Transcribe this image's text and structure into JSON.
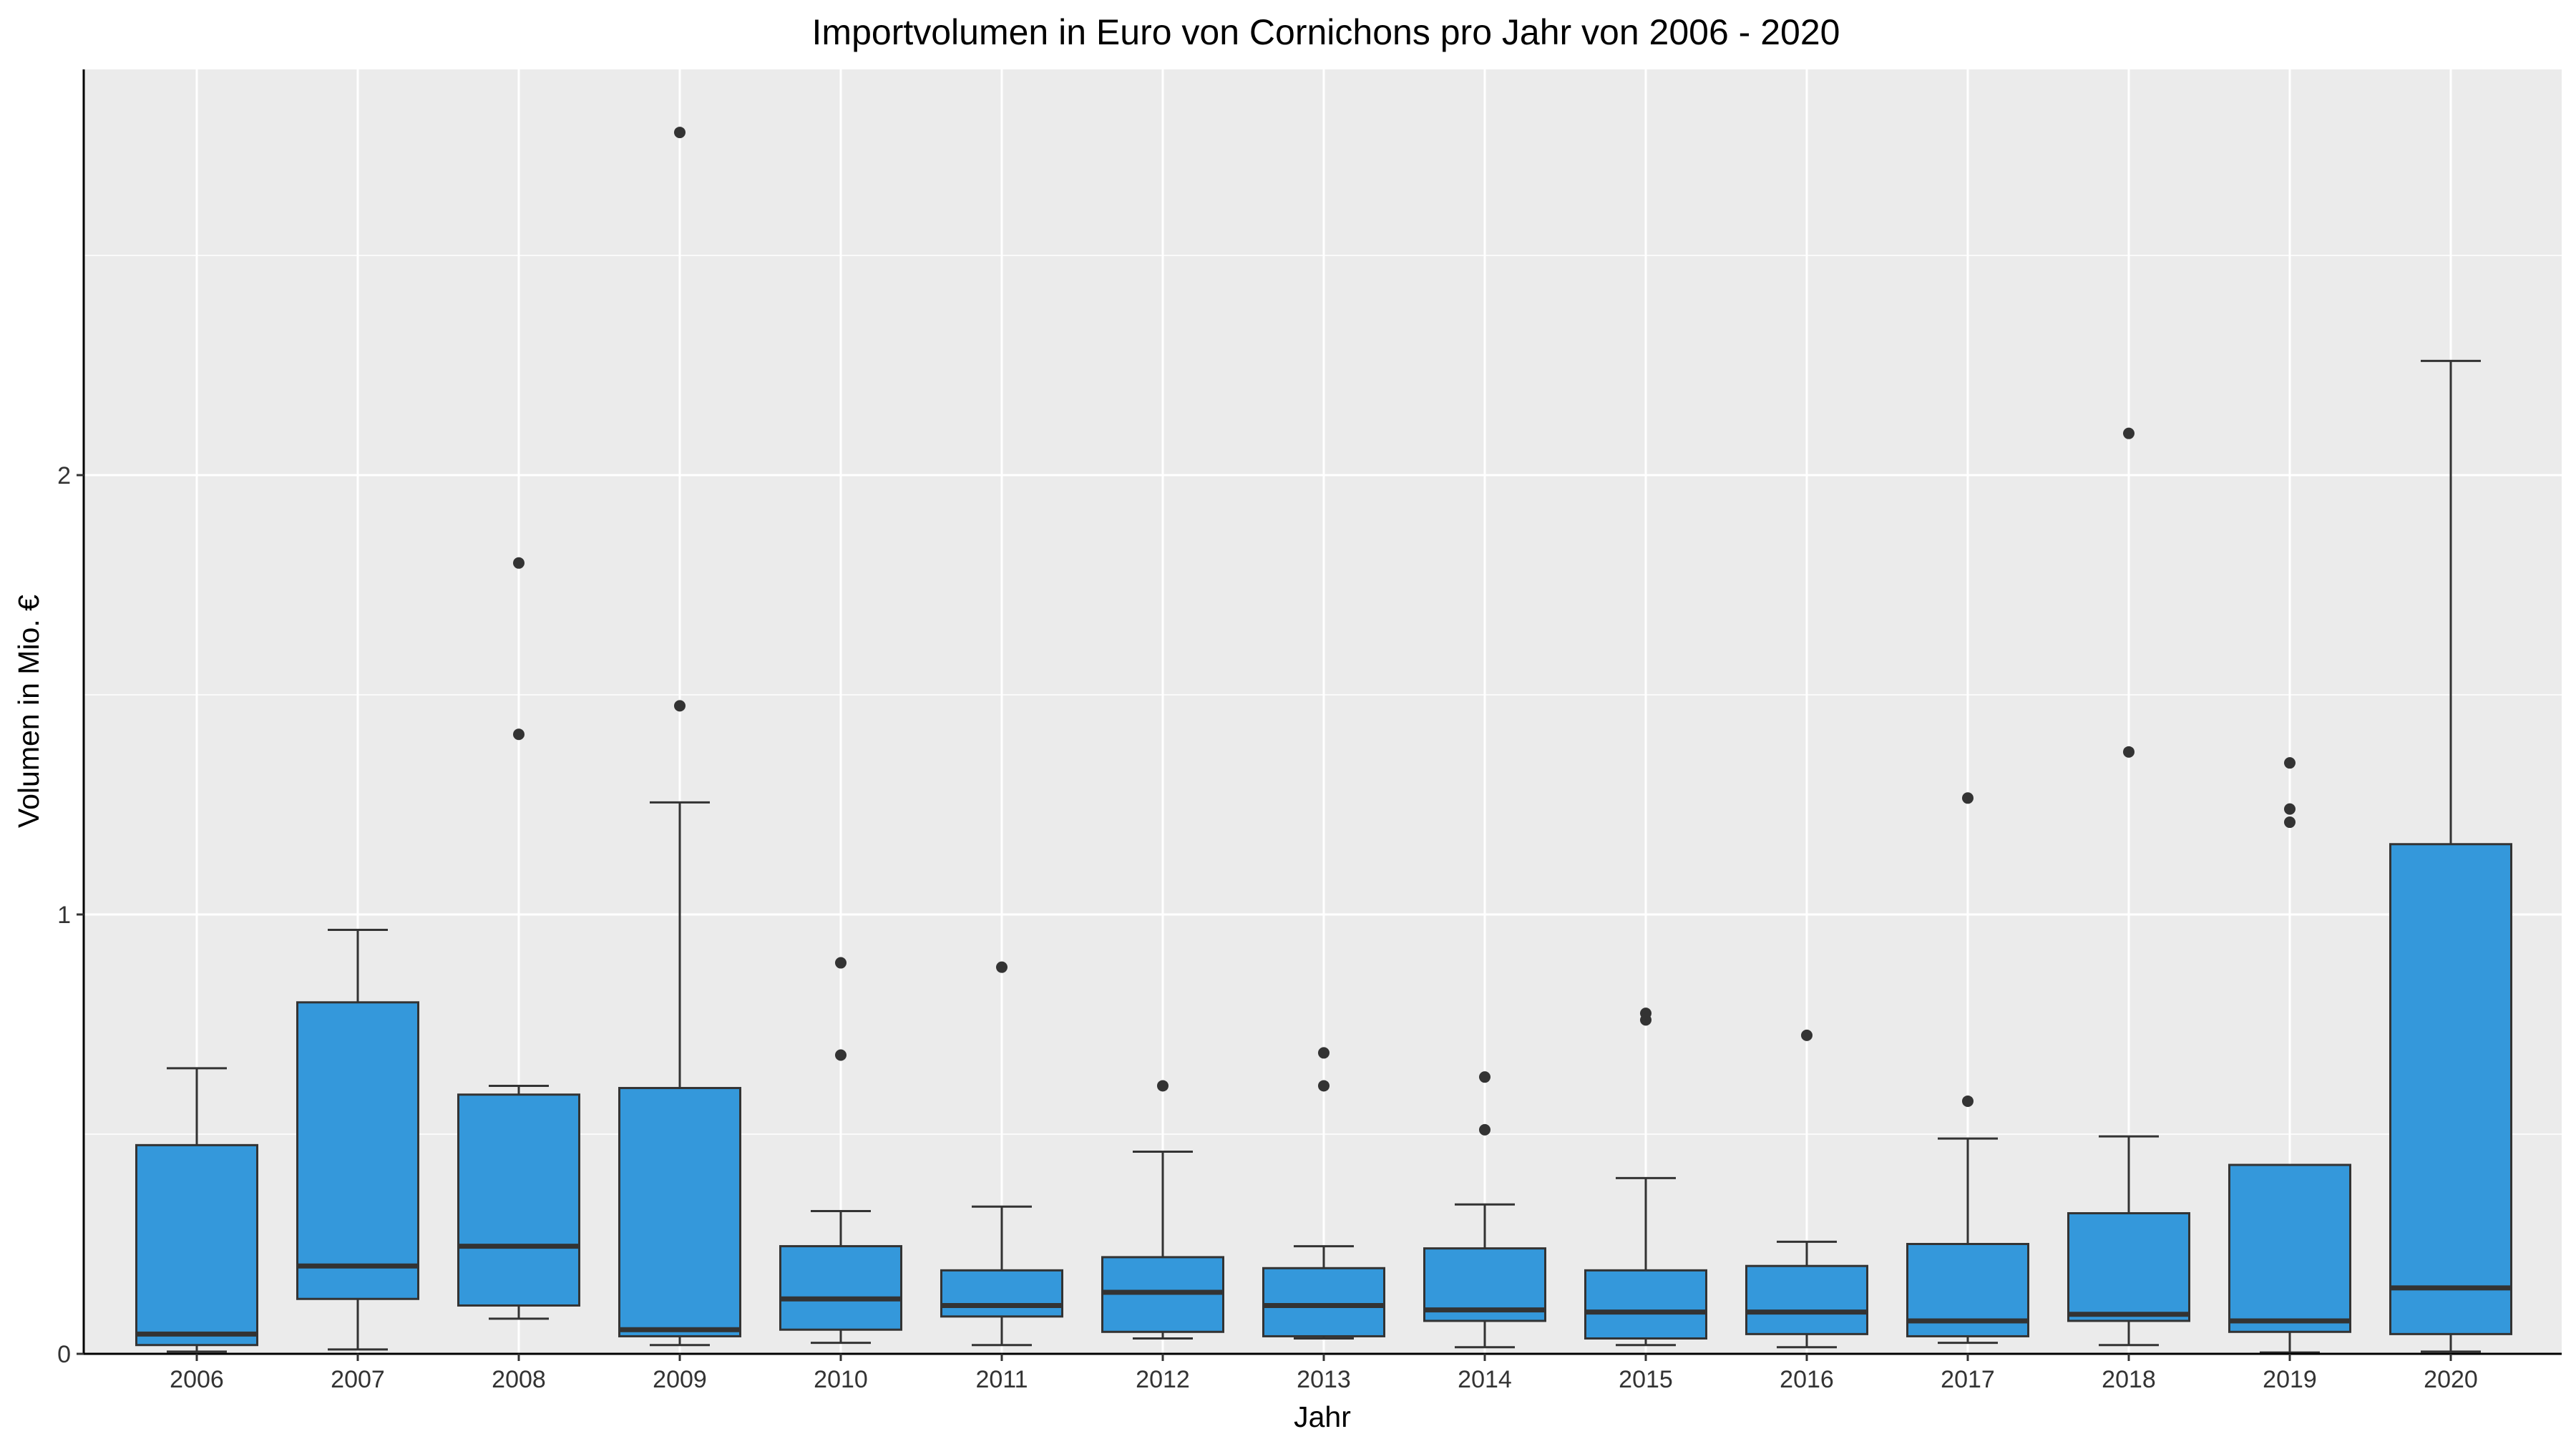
{
  "chart_data": {
    "type": "boxplot",
    "title": "Importvolumen in Euro von Cornichons pro Jahr von 2006 - 2020",
    "xlabel": "Jahr",
    "ylabel": "Volumen in Mio. €",
    "ylim": [
      0,
      2.9
    ],
    "y_ticks": [
      0,
      1,
      2
    ],
    "y_tick_labels": [
      "0",
      "1",
      "2"
    ],
    "grid": true,
    "legend": "none",
    "colors": {
      "box_fill": "#3498DB",
      "panel": "#EBEBEB",
      "grid": "#FFFFFF",
      "line": "#333333"
    },
    "categories": [
      "2006",
      "2007",
      "2008",
      "2009",
      "2010",
      "2011",
      "2012",
      "2013",
      "2014",
      "2015",
      "2016",
      "2017",
      "2018",
      "2019",
      "2020"
    ],
    "boxes": [
      {
        "x": "2006",
        "whisker_low": 0.005,
        "q1": 0.02,
        "median": 0.045,
        "q3": 0.475,
        "whisker_high": 0.65,
        "outliers": []
      },
      {
        "x": "2007",
        "whisker_low": 0.01,
        "q1": 0.125,
        "median": 0.2,
        "q3": 0.8,
        "whisker_high": 0.965,
        "outliers": []
      },
      {
        "x": "2008",
        "whisker_low": 0.08,
        "q1": 0.11,
        "median": 0.245,
        "q3": 0.59,
        "whisker_high": 0.61,
        "outliers": [
          1.41,
          1.8
        ]
      },
      {
        "x": "2009",
        "whisker_low": 0.02,
        "q1": 0.04,
        "median": 0.055,
        "q3": 0.605,
        "whisker_high": 1.255,
        "outliers": [
          1.475,
          2.78
        ]
      },
      {
        "x": "2010",
        "whisker_low": 0.025,
        "q1": 0.055,
        "median": 0.125,
        "q3": 0.245,
        "whisker_high": 0.325,
        "outliers": [
          0.68,
          0.89
        ]
      },
      {
        "x": "2011",
        "whisker_low": 0.02,
        "q1": 0.085,
        "median": 0.11,
        "q3": 0.19,
        "whisker_high": 0.335,
        "outliers": [
          0.88
        ]
      },
      {
        "x": "2012",
        "whisker_low": 0.035,
        "q1": 0.05,
        "median": 0.14,
        "q3": 0.22,
        "whisker_high": 0.46,
        "outliers": [
          0.61
        ]
      },
      {
        "x": "2013",
        "whisker_low": 0.035,
        "q1": 0.04,
        "median": 0.11,
        "q3": 0.195,
        "whisker_high": 0.245,
        "outliers": [
          0.61,
          0.685
        ]
      },
      {
        "x": "2014",
        "whisker_low": 0.015,
        "q1": 0.075,
        "median": 0.1,
        "q3": 0.24,
        "whisker_high": 0.34,
        "outliers": [
          0.51,
          0.63
        ]
      },
      {
        "x": "2015",
        "whisker_low": 0.02,
        "q1": 0.035,
        "median": 0.095,
        "q3": 0.19,
        "whisker_high": 0.4,
        "outliers": [
          0.76,
          0.775
        ]
      },
      {
        "x": "2016",
        "whisker_low": 0.015,
        "q1": 0.045,
        "median": 0.095,
        "q3": 0.2,
        "whisker_high": 0.255,
        "outliers": [
          0.725
        ]
      },
      {
        "x": "2017",
        "whisker_low": 0.025,
        "q1": 0.04,
        "median": 0.075,
        "q3": 0.25,
        "whisker_high": 0.49,
        "outliers": [
          0.575,
          1.265
        ]
      },
      {
        "x": "2018",
        "whisker_low": 0.02,
        "q1": 0.075,
        "median": 0.09,
        "q3": 0.32,
        "whisker_high": 0.495,
        "outliers": [
          1.37,
          2.095
        ]
      },
      {
        "x": "2019",
        "whisker_low": 0.003,
        "q1": 0.05,
        "median": 0.075,
        "q3": 0.43,
        "whisker_high": 0.43,
        "outliers": [
          1.21,
          1.24,
          1.345
        ]
      },
      {
        "x": "2020",
        "whisker_low": 0.005,
        "q1": 0.045,
        "median": 0.15,
        "q3": 1.16,
        "whisker_high": 2.26,
        "outliers": []
      }
    ]
  }
}
